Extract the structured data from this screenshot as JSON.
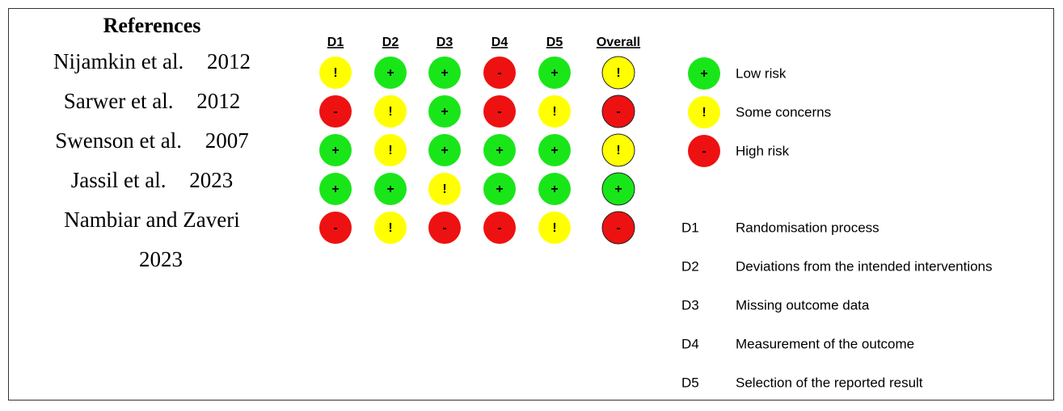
{
  "header": {
    "title": "References"
  },
  "columns": [
    "D1",
    "D2",
    "D3",
    "D4",
    "D5",
    "Overall"
  ],
  "rows": [
    {
      "author": "Nijamkin et al.",
      "year": "2012",
      "judgments": [
        "!",
        "+",
        "+",
        "-",
        "+",
        "!"
      ]
    },
    {
      "author": "Sarwer et al.",
      "year": "2012",
      "judgments": [
        "-",
        "!",
        "+",
        "-",
        "!",
        "-"
      ]
    },
    {
      "author": "Swenson et al.",
      "year": "2007",
      "judgments": [
        "+",
        "!",
        "+",
        "+",
        "+",
        "!"
      ]
    },
    {
      "author": "Jassil et al.",
      "year": "2023",
      "judgments": [
        "+",
        "+",
        "!",
        "+",
        "+",
        "+"
      ]
    },
    {
      "author": "Nambiar and Zaveri",
      "year": "2023",
      "judgments": [
        "-",
        "!",
        "-",
        "-",
        "!",
        "-"
      ]
    }
  ],
  "legend": {
    "judgments": [
      {
        "symbol": "+",
        "label": "Low risk",
        "color": "#19e619"
      },
      {
        "symbol": "!",
        "label": "Some concerns",
        "color": "#ffff00"
      },
      {
        "symbol": "-",
        "label": "High risk",
        "color": "#ee1111"
      }
    ],
    "domains": [
      {
        "code": "D1",
        "description": "Randomisation process"
      },
      {
        "code": "D2",
        "description": "Deviations from the intended interventions"
      },
      {
        "code": "D3",
        "description": "Missing outcome data"
      },
      {
        "code": "D4",
        "description": "Measurement of the outcome"
      },
      {
        "code": "D5",
        "description": "Selection of the reported result"
      }
    ]
  }
}
